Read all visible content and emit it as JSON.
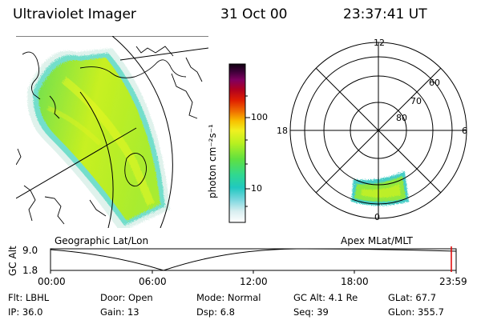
{
  "header": {
    "instrument": "Ultraviolet Imager",
    "date": "31 Oct 00",
    "time": "23:37:41 UT"
  },
  "geo_panel": {
    "caption": "Geographic Lat/Lon"
  },
  "apex_panel": {
    "caption": "Apex MLat/MLT",
    "mlt_labels": [
      "12",
      "18",
      "6",
      "0"
    ],
    "lat_labels": [
      "60",
      "70",
      "80"
    ]
  },
  "colorbar": {
    "unit_label": "photon cm⁻²s⁻¹",
    "ticks": [
      "100",
      "10"
    ],
    "scale": "log"
  },
  "alt_plot": {
    "ylabel": "GC Alt",
    "yticks": [
      "9.0",
      "1.8"
    ],
    "xticks": [
      "00:00",
      "06:00",
      "12:00",
      "18:00",
      "23:59"
    ],
    "marker_color": "#e00000"
  },
  "info": {
    "row1": [
      {
        "label": "Flt:",
        "value": "LBHL"
      },
      {
        "label": "Door:",
        "value": "Open"
      },
      {
        "label": "Mode:",
        "value": "Normal"
      },
      {
        "label": "GC Alt:",
        "value": "4.1 Re"
      },
      {
        "label": "GLat:",
        "value": "67.7"
      }
    ],
    "row2": [
      {
        "label": "IP:",
        "value": "36.0"
      },
      {
        "label": "Gain:",
        "value": "13"
      },
      {
        "label": "Dsp:",
        "value": "6.8"
      },
      {
        "label": "Seq:",
        "value": "39"
      },
      {
        "label": "GLon:",
        "value": "355.7"
      }
    ]
  }
}
